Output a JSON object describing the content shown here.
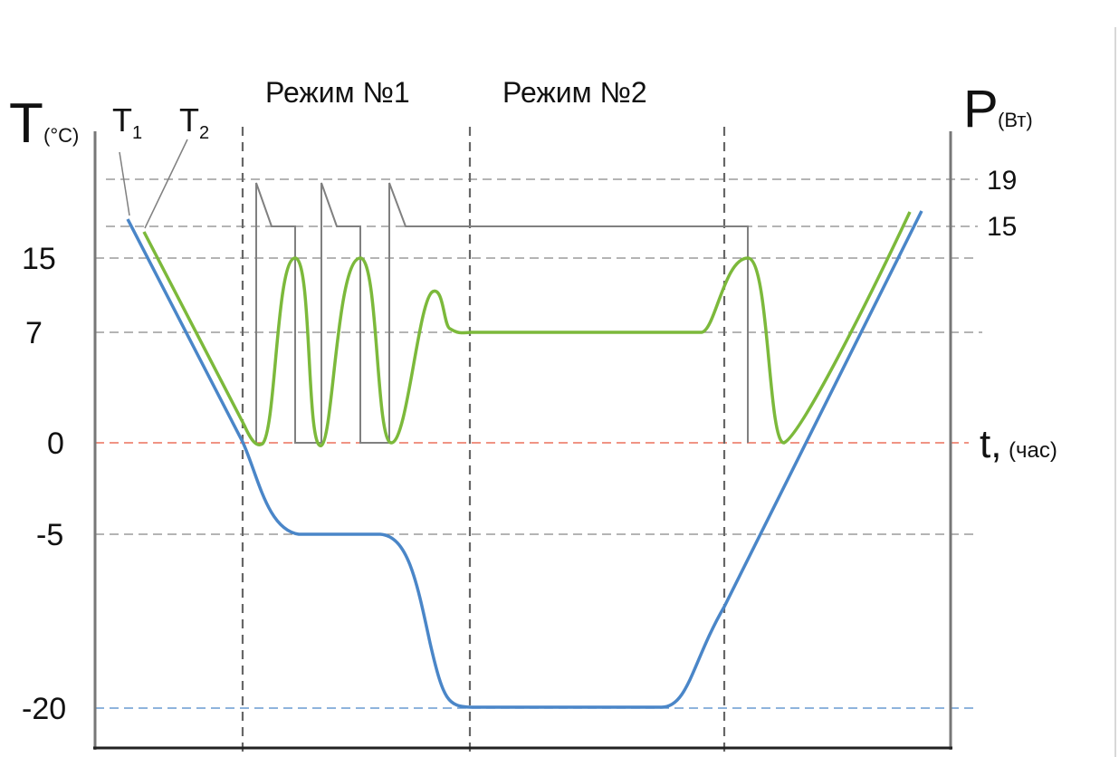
{
  "left_axis": {
    "symbol": "T",
    "unit": "(°C)"
  },
  "right_axis": {
    "symbol": "P",
    "unit": "(Вт)"
  },
  "time_axis": {
    "symbol": "t,",
    "unit": "(час)"
  },
  "mode_labels": [
    "Режим №1",
    "Режим №2"
  ],
  "curve_labels": {
    "t1": {
      "letter": "T",
      "sub": "1"
    },
    "t2": {
      "letter": "T",
      "sub": "2"
    }
  },
  "left_ticks": [
    "15",
    "7",
    "0",
    "-5",
    "-20"
  ],
  "right_ticks": [
    "19",
    "15"
  ],
  "colors": {
    "t1_curve": "#4a86c8",
    "t2_curve": "#7cb93b",
    "power_curve": "#808080",
    "zero_line": "#e8553b",
    "min_line": "#4a86c8",
    "axis": "#777777",
    "grid": "#888888"
  },
  "chart_data": {
    "type": "line",
    "series": [
      {
        "name": "T1",
        "x": [
          0.2,
          1.3,
          1.75,
          3.0,
          3.5,
          4.0,
          8.2,
          8.8,
          9.5,
          11.9
        ],
        "y": [
          19,
          0,
          -5,
          -5,
          -10,
          -20,
          -20,
          -15,
          -5,
          19
        ]
      },
      {
        "name": "T2",
        "x": [
          0.3,
          1.15,
          1.7,
          2.1,
          2.5,
          2.8,
          3.2,
          3.6,
          3.85,
          4.0,
          8.0,
          8.3,
          9.1,
          9.4,
          11.8
        ],
        "y": [
          19,
          0,
          15,
          0,
          15,
          0,
          10,
          7,
          7,
          7,
          7,
          15,
          0,
          0,
          19
        ]
      }
    ]
  }
}
